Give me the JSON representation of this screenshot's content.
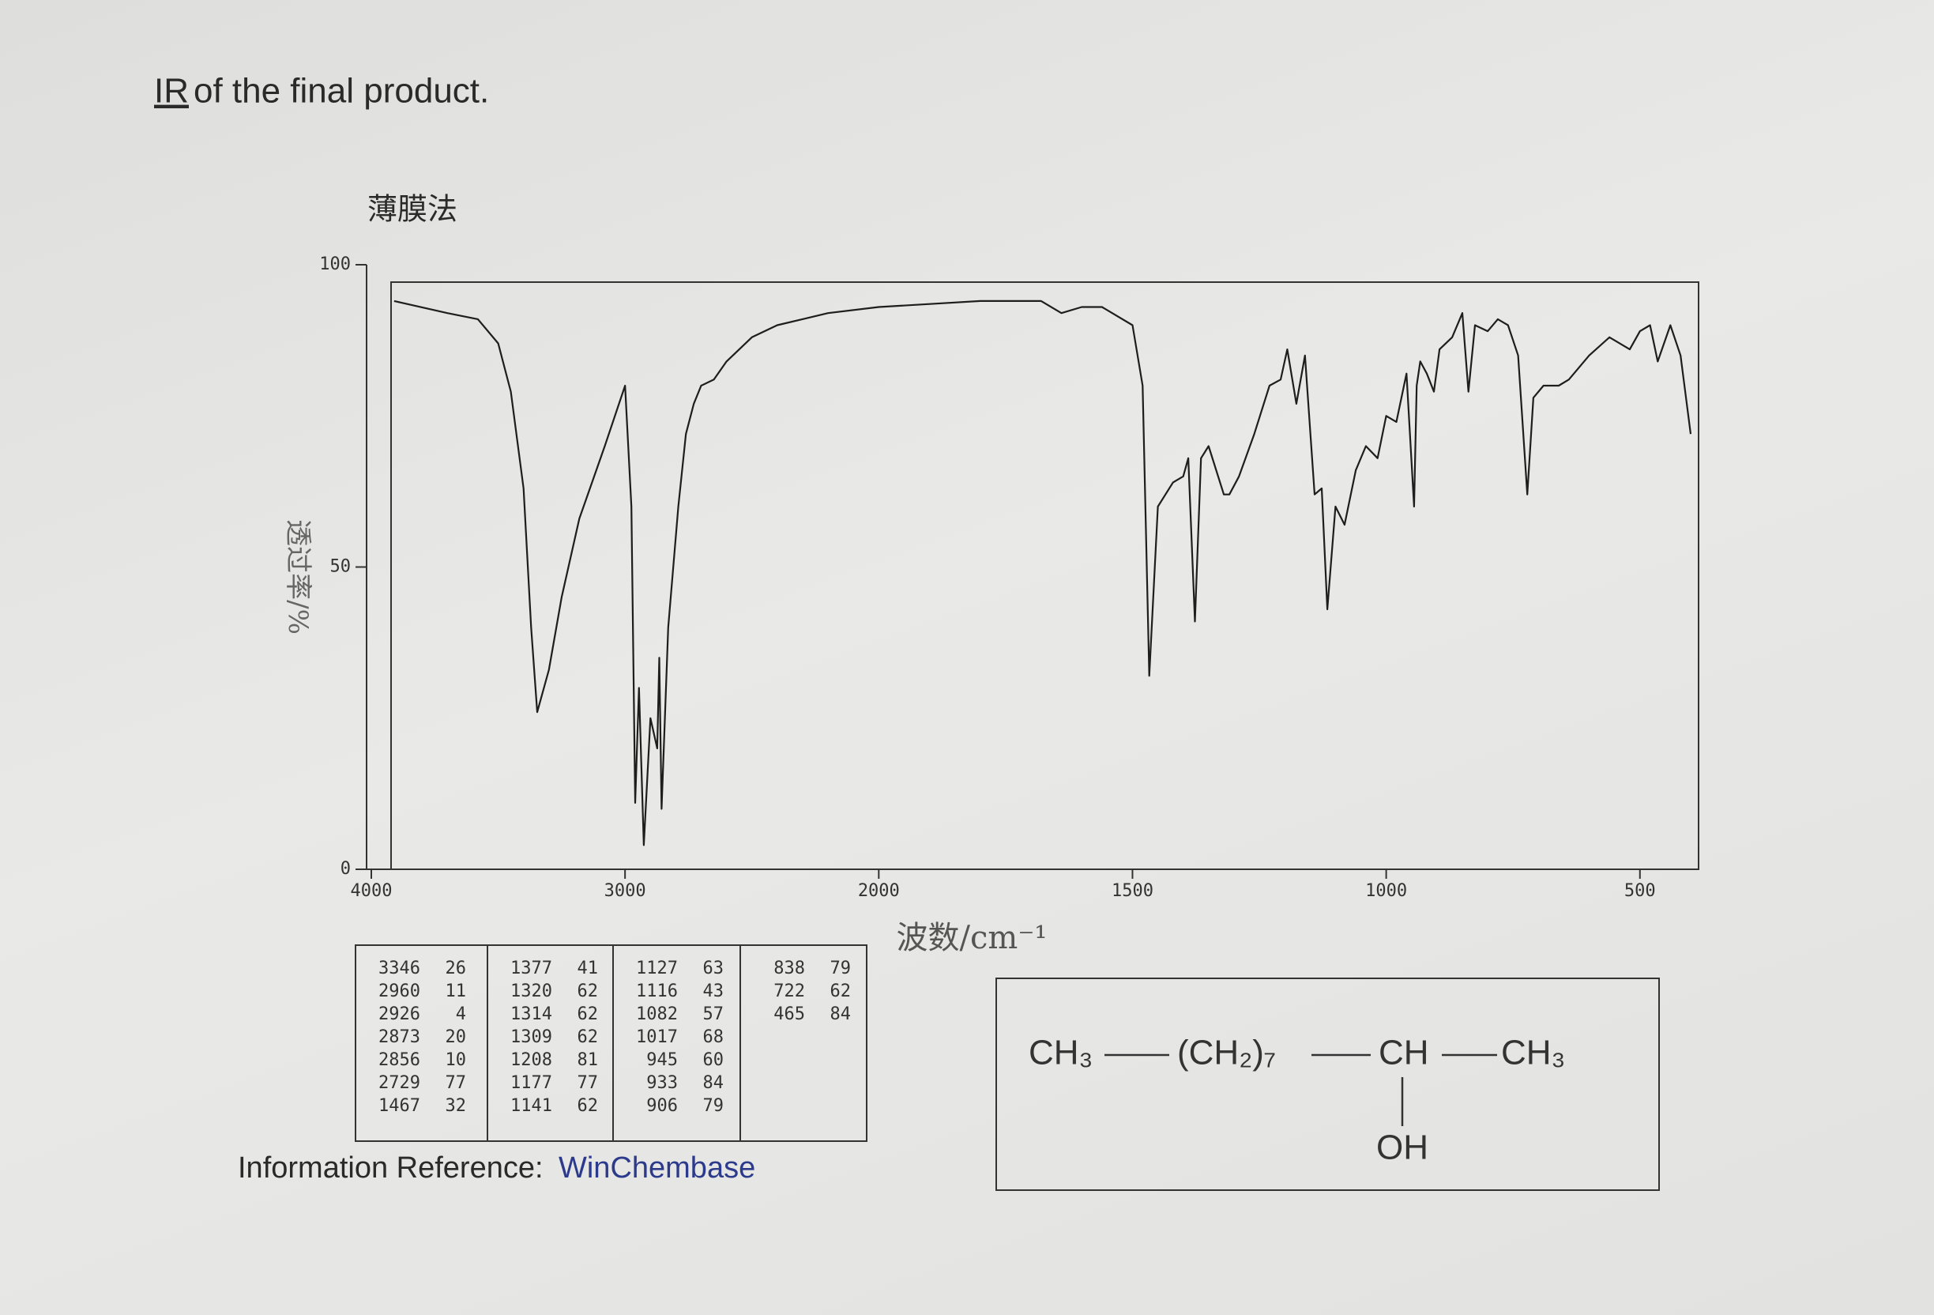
{
  "header": {
    "abbr": "IR",
    "rest": "of the final product."
  },
  "chart_data": {
    "type": "line",
    "title": "薄膜法",
    "x_label": "波数/cm⁻¹",
    "y_label": "透过率/%",
    "x_scale": "ir-expanded",
    "x": [
      3910,
      3700,
      3580,
      3500,
      3450,
      3400,
      3370,
      3346,
      3300,
      3250,
      3180,
      3080,
      3000,
      2975,
      2960,
      2945,
      2926,
      2900,
      2873,
      2865,
      2856,
      2830,
      2790,
      2760,
      2729,
      2700,
      2650,
      2600,
      2500,
      2400,
      2200,
      2000,
      1800,
      1680,
      1640,
      1600,
      1560,
      1500,
      1480,
      1467,
      1450,
      1420,
      1400,
      1390,
      1377,
      1365,
      1350,
      1320,
      1314,
      1309,
      1290,
      1260,
      1230,
      1208,
      1195,
      1177,
      1160,
      1141,
      1127,
      1116,
      1100,
      1082,
      1060,
      1040,
      1017,
      1000,
      980,
      960,
      945,
      940,
      933,
      920,
      906,
      895,
      870,
      850,
      838,
      825,
      800,
      780,
      760,
      740,
      722,
      710,
      690,
      660,
      640,
      600,
      560,
      520,
      500,
      480,
      465,
      440,
      420,
      400
    ],
    "values": [
      94,
      92,
      91,
      87,
      79,
      63,
      40,
      26,
      33,
      45,
      58,
      70,
      80,
      60,
      11,
      30,
      4,
      25,
      20,
      35,
      10,
      40,
      60,
      72,
      77,
      80,
      81,
      84,
      88,
      90,
      92,
      93,
      94,
      94,
      92,
      93,
      93,
      90,
      80,
      32,
      60,
      64,
      65,
      68,
      41,
      68,
      70,
      62,
      62,
      62,
      65,
      72,
      80,
      81,
      86,
      77,
      85,
      62,
      63,
      43,
      60,
      57,
      66,
      70,
      68,
      75,
      74,
      82,
      60,
      80,
      84,
      82,
      79,
      86,
      88,
      92,
      79,
      90,
      89,
      91,
      90,
      85,
      62,
      78,
      80,
      80,
      81,
      85,
      88,
      86,
      89,
      90,
      84,
      90,
      85,
      72
    ],
    "color": "#1e1e1e",
    "xlim": [
      4000,
      400
    ],
    "xticks": [
      4000,
      3000,
      2000,
      1500,
      1000,
      500
    ],
    "ylim": [
      0,
      100
    ],
    "yticks": [
      0,
      50,
      100
    ]
  },
  "peak_table": {
    "columns": [
      [
        [
          3346,
          26
        ],
        [
          2960,
          11
        ],
        [
          2926,
          4
        ],
        [
          2873,
          20
        ],
        [
          2856,
          10
        ],
        [
          2729,
          77
        ],
        [
          1467,
          32
        ]
      ],
      [
        [
          1377,
          41
        ],
        [
          1320,
          62
        ],
        [
          1314,
          62
        ],
        [
          1309,
          62
        ],
        [
          1208,
          81
        ],
        [
          1177,
          77
        ],
        [
          1141,
          62
        ]
      ],
      [
        [
          1127,
          63
        ],
        [
          1116,
          43
        ],
        [
          1082,
          57
        ],
        [
          1017,
          68
        ],
        [
          945,
          60
        ],
        [
          933,
          84
        ],
        [
          906,
          79
        ]
      ],
      [
        [
          838,
          79
        ],
        [
          722,
          62
        ],
        [
          465,
          84
        ]
      ]
    ]
  },
  "structure": {
    "groups": [
      "CH₃",
      "(CH₂)₇",
      "CH",
      "CH₃"
    ],
    "substituent": "OH"
  },
  "reference": {
    "label": "Information Reference:",
    "source": "WinChembase"
  }
}
